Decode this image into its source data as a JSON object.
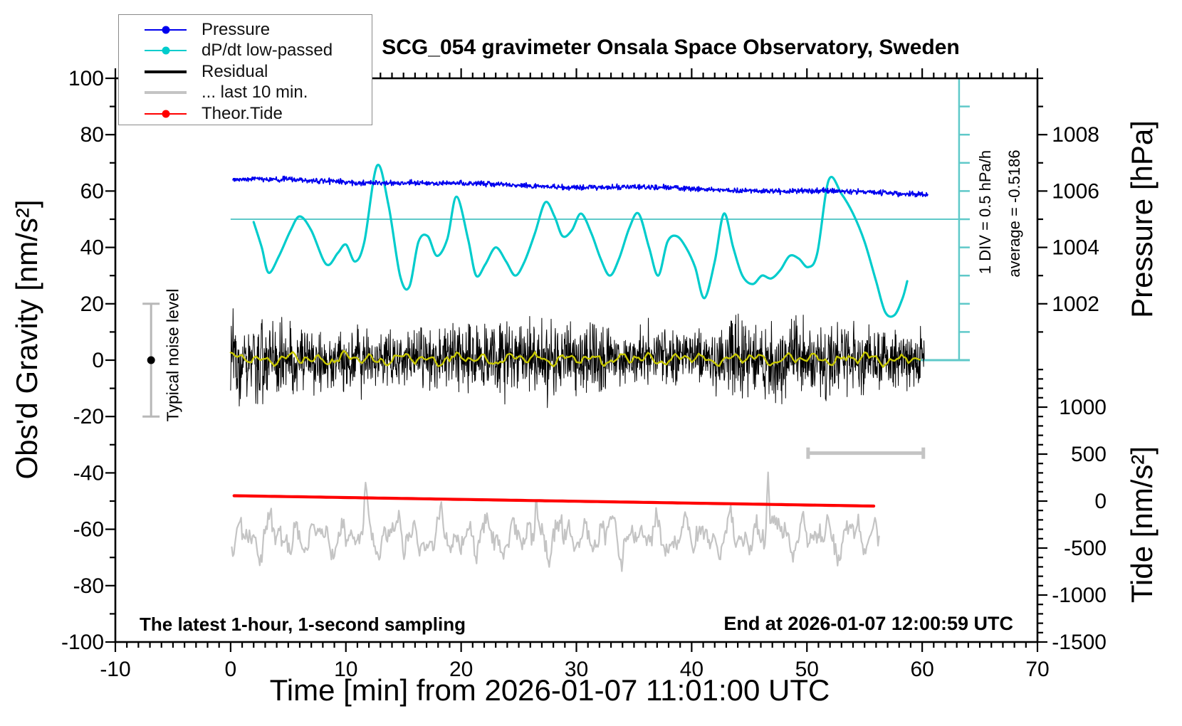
{
  "chart_data": {
    "type": "line",
    "title": "SCG_054 gravimeter Onsala Space Observatory, Sweden",
    "axes": {
      "x": {
        "title": "Time [min] from 2026-01-07 11:01:00 UTC",
        "min": -10,
        "max": 70,
        "majors": [
          -10,
          0,
          10,
          20,
          30,
          40,
          50,
          60,
          70
        ],
        "minor_step": 1
      },
      "gravity": {
        "title": "Obs'd Gravity [nm/s²]",
        "min": -100,
        "max": 100,
        "majors": [
          100,
          80,
          60,
          40,
          20,
          0,
          -20,
          -40,
          -60,
          -80,
          -100
        ],
        "minor_step": 10
      },
      "pressure": {
        "title": "Pressure [hPa]",
        "min": 1000,
        "max": 1010,
        "majors": [
          1008,
          1006,
          1004,
          1002
        ],
        "minor_step": 1
      },
      "tide": {
        "title": "Tide [nm/s²]",
        "min": -1500,
        "max": 1500,
        "majors": [
          1000,
          500,
          0,
          -500,
          -1000,
          -1500
        ],
        "minor_step": 100
      }
    },
    "series": [
      {
        "name": "Pressure",
        "color": "#0000EE",
        "style": "noisy-line",
        "t_start": 0.2,
        "t_end": 60.5,
        "v_start": 64.2,
        "v_end": 59.0,
        "noise_sigma": 0.45,
        "pressure_start_hPa": 1006.4,
        "pressure_end_hPa": 1005.9
      },
      {
        "name": "dP/dt low-passed",
        "color": "#00CCCC",
        "style": "smooth-line",
        "zero_line_gravity": 50,
        "zero_line_color": "#5FC9C9",
        "keypoints": [
          [
            2.0,
            49
          ],
          [
            2.7,
            40
          ],
          [
            3.3,
            31
          ],
          [
            4.2,
            37
          ],
          [
            5.2,
            46
          ],
          [
            6.0,
            51
          ],
          [
            7.0,
            46
          ],
          [
            8.3,
            34
          ],
          [
            9.3,
            38
          ],
          [
            10.0,
            41
          ],
          [
            10.8,
            35
          ],
          [
            11.6,
            42
          ],
          [
            12.7,
            69
          ],
          [
            13.7,
            55
          ],
          [
            14.7,
            30
          ],
          [
            15.5,
            26
          ],
          [
            16.3,
            42
          ],
          [
            17.1,
            44
          ],
          [
            17.9,
            37
          ],
          [
            18.8,
            43
          ],
          [
            19.6,
            58
          ],
          [
            20.6,
            43
          ],
          [
            21.3,
            30
          ],
          [
            22.1,
            34
          ],
          [
            23.0,
            40
          ],
          [
            23.9,
            35
          ],
          [
            24.7,
            30
          ],
          [
            25.5,
            35
          ],
          [
            26.4,
            45
          ],
          [
            27.3,
            56
          ],
          [
            28.1,
            51
          ],
          [
            28.8,
            44
          ],
          [
            29.6,
            46
          ],
          [
            30.4,
            52
          ],
          [
            31.3,
            45
          ],
          [
            32.1,
            36
          ],
          [
            32.9,
            30
          ],
          [
            33.7,
            36
          ],
          [
            34.6,
            47
          ],
          [
            35.4,
            52
          ],
          [
            36.3,
            40
          ],
          [
            37.1,
            30
          ],
          [
            37.9,
            42
          ],
          [
            38.7,
            44
          ],
          [
            39.5,
            40
          ],
          [
            40.3,
            33
          ],
          [
            41.1,
            22
          ],
          [
            42.0,
            35
          ],
          [
            42.8,
            52
          ],
          [
            43.6,
            40
          ],
          [
            44.4,
            30
          ],
          [
            45.3,
            27
          ],
          [
            46.1,
            30
          ],
          [
            46.9,
            29
          ],
          [
            47.7,
            32
          ],
          [
            48.5,
            37
          ],
          [
            49.3,
            36
          ],
          [
            50.1,
            33
          ],
          [
            50.9,
            38
          ],
          [
            51.9,
            64
          ],
          [
            53.0,
            59
          ],
          [
            54.0,
            52
          ],
          [
            55.0,
            42
          ],
          [
            56.0,
            28
          ],
          [
            56.8,
            17
          ],
          [
            57.6,
            16
          ],
          [
            58.3,
            22
          ],
          [
            58.7,
            28
          ]
        ]
      },
      {
        "name": "Residual",
        "color": "#000000",
        "style": "noise-band",
        "t_start": 0,
        "t_end": 60.2,
        "center": 0.4,
        "sigma": 5.5,
        "max_amplitude": 22
      },
      {
        "name": "Residual low-passed",
        "color": "#C8C800",
        "style": "smooth-noise",
        "t_start": 0,
        "t_end": 60.0,
        "center": 0.4,
        "amplitude": 1.8
      },
      {
        "name": "... last 10 min.",
        "color": "#C4C4C4",
        "style": "smooth-noise",
        "t_start": 0.1,
        "t_end": 56.3,
        "center": -62.5,
        "amplitude": 7,
        "spikes": [
          [
            11.7,
            15
          ],
          [
            26.5,
            9
          ],
          [
            46.6,
            24
          ]
        ]
      },
      {
        "name": "Theor.Tide",
        "color": "#FF0000",
        "style": "line",
        "t_start": 0.3,
        "t_end": 56.2,
        "v_start": -48.1,
        "v_end": -51.8,
        "tide_axis_start": 45,
        "tide_axis_end": -68
      }
    ],
    "scale_bar": {
      "label": "1 DIV = 0.5 hPa/h",
      "color": "#5FC9C9",
      "gravity_top": 100,
      "gravity_bottom": 0,
      "div_gravity": 10,
      "x_time": 63.2
    },
    "noise_bar": {
      "t_center": -6.9,
      "center_gravity": 0,
      "half_range": 20,
      "bar_color": "#B8B8B8",
      "dot_color": "#000000"
    },
    "last10_bar": {
      "t_from": 50.1,
      "t_to": 60.1,
      "gravity_y": -33,
      "color": "#C4C4C4"
    },
    "annotations": {
      "div_scale": "1 DIV = 0.5 hPa/h",
      "average": "average = -0.5186",
      "noise": "Typical noise level",
      "sampling": "The latest 1-hour, 1-second sampling",
      "end": "End at 2026-01-07 12:00:59 UTC"
    }
  },
  "legend": {
    "items": [
      {
        "label": "Pressure",
        "color": "#0000EE",
        "thick": false,
        "dot": true
      },
      {
        "label": "dP/dt low-passed",
        "color": "#00CCCC",
        "thick": false,
        "dot": true
      },
      {
        "label": "Residual",
        "color": "#000000",
        "thick": true,
        "dot": false
      },
      {
        "label": "... last 10 min.",
        "color": "#C4C4C4",
        "thick": true,
        "dot": false
      },
      {
        "label": "Theor.Tide",
        "color": "#FF0000",
        "thick": false,
        "dot": true
      }
    ]
  }
}
